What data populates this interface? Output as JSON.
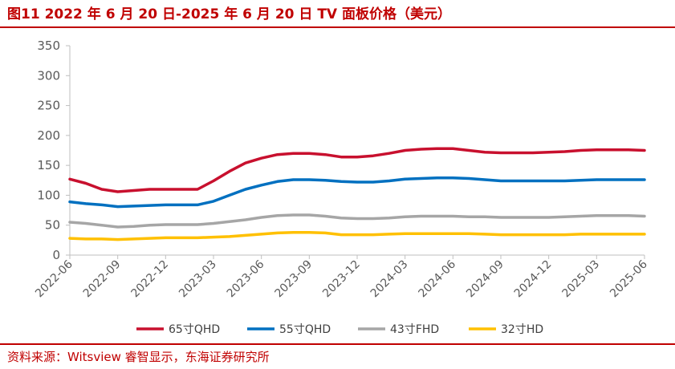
{
  "header": {
    "title": "图11  2022 年 6 月 20 日-2025 年 6 月 20 日 TV 面板价格（美元）"
  },
  "footer": {
    "source": "资料来源：Witsview 睿智显示，东海证券研究所"
  },
  "colors": {
    "accent": "#c00000",
    "s65": "#c8102e",
    "s55": "#0070c0",
    "s43": "#a6a6a6",
    "s32": "#ffc000",
    "axis": "#595959"
  },
  "chart_data": {
    "type": "line",
    "title": "2022 年 6 月 20 日-2025 年 6 月 20 日 TV 面板价格（美元）",
    "xlabel": "",
    "ylabel": "",
    "ylim": [
      0,
      350
    ],
    "yticks": [
      0,
      50,
      100,
      150,
      200,
      250,
      300,
      350
    ],
    "x": [
      "2022-06",
      "2022-07",
      "2022-08",
      "2022-09",
      "2022-10",
      "2022-11",
      "2022-12",
      "2023-01",
      "2023-02",
      "2023-03",
      "2023-04",
      "2023-05",
      "2023-06",
      "2023-07",
      "2023-08",
      "2023-09",
      "2023-10",
      "2023-11",
      "2023-12",
      "2024-01",
      "2024-02",
      "2024-03",
      "2024-04",
      "2024-05",
      "2024-06",
      "2024-07",
      "2024-08",
      "2024-09",
      "2024-10",
      "2024-11",
      "2024-12",
      "2025-01",
      "2025-02",
      "2025-03",
      "2025-04",
      "2025-05",
      "2025-06"
    ],
    "xticks": [
      "2022-06",
      "2022-09",
      "2022-12",
      "2023-03",
      "2023-06",
      "2023-09",
      "2023-12",
      "2024-03",
      "2024-06",
      "2024-09",
      "2024-12",
      "2025-03",
      "2025-06"
    ],
    "legend_position": "bottom",
    "series": [
      {
        "name": "65寸QHD",
        "values": [
          127,
          120,
          110,
          106,
          108,
          110,
          110,
          110,
          110,
          124,
          140,
          154,
          162,
          168,
          170,
          170,
          168,
          164,
          164,
          166,
          170,
          175,
          177,
          178,
          178,
          175,
          172,
          171,
          171,
          171,
          172,
          173,
          175,
          176,
          176,
          176,
          175
        ]
      },
      {
        "name": "55寸QHD",
        "values": [
          89,
          86,
          84,
          81,
          82,
          83,
          84,
          84,
          84,
          90,
          100,
          110,
          117,
          123,
          126,
          126,
          125,
          123,
          122,
          122,
          124,
          127,
          128,
          129,
          129,
          128,
          126,
          124,
          124,
          124,
          124,
          124,
          125,
          126,
          126,
          126,
          126
        ]
      },
      {
        "name": "43寸FHD",
        "values": [
          55,
          53,
          50,
          47,
          48,
          50,
          51,
          51,
          51,
          53,
          56,
          59,
          63,
          66,
          67,
          67,
          65,
          62,
          61,
          61,
          62,
          64,
          65,
          65,
          65,
          64,
          64,
          63,
          63,
          63,
          63,
          64,
          65,
          66,
          66,
          66,
          65
        ]
      },
      {
        "name": "32寸HD",
        "values": [
          28,
          27,
          27,
          26,
          27,
          28,
          29,
          29,
          29,
          30,
          31,
          33,
          35,
          37,
          38,
          38,
          37,
          34,
          34,
          34,
          35,
          36,
          36,
          36,
          36,
          36,
          35,
          34,
          34,
          34,
          34,
          34,
          35,
          35,
          35,
          35,
          35
        ]
      }
    ]
  }
}
